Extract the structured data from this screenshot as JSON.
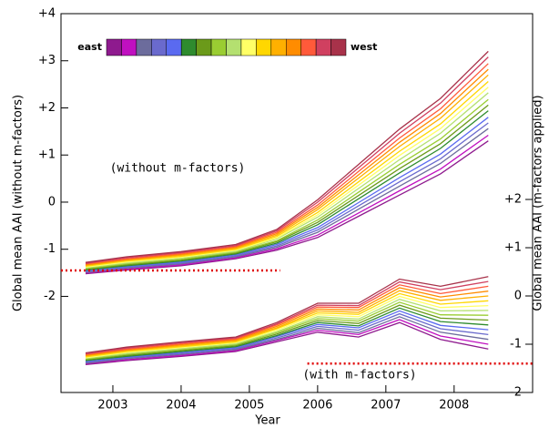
{
  "chart_data": {
    "type": "line",
    "x_label": "Year",
    "y_label": "Global mean AAI (without m-factors)",
    "y2_label": "Global mean AAI (m-factors applied)",
    "legend_labels": [
      "east",
      "west"
    ],
    "annotations": [
      "(without m-factors)",
      "(with m-factors)"
    ],
    "xlim": [
      2002.24,
      2009.15
    ],
    "xticks": [
      2003,
      2004,
      2005,
      2006,
      2007,
      2008
    ],
    "ylim": [
      -4.04,
      4
    ],
    "yticks": [
      {
        "value": 4,
        "label": "+4"
      },
      {
        "value": 3,
        "label": "+3"
      },
      {
        "value": 2,
        "label": "+2"
      },
      {
        "value": 1,
        "label": "+1"
      },
      0,
      -1,
      -2
    ],
    "y2lim": [
      -2,
      5.85
    ],
    "y2ticks": [
      {
        "value": 2,
        "label": "+2"
      },
      {
        "value": 1,
        "label": "+1"
      },
      0,
      -1,
      -2
    ],
    "reference_lines": [
      {
        "axis": "y",
        "value": -1.45,
        "x": [
          2002.24,
          2005.45
        ],
        "color": "#e00000"
      },
      {
        "axis": "y2",
        "value": -1.4,
        "x": [
          2005.85,
          2009.15
        ],
        "color": "#e00000"
      }
    ],
    "x": [
      2002.6,
      2003.2,
      2004.0,
      2004.8,
      2005.4,
      2006.0,
      2006.6,
      2007.2,
      2007.8,
      2008.5
    ],
    "series": [
      {
        "color": "#8e1a8e",
        "values": [
          -1.52,
          -1.44,
          -1.35,
          -1.2,
          -1.02,
          -0.75,
          -0.3,
          0.15,
          0.6,
          1.3
        ]
      },
      {
        "color": "#c010c0",
        "values": [
          -1.5,
          -1.42,
          -1.33,
          -1.18,
          -0.99,
          -0.7,
          -0.23,
          0.24,
          0.7,
          1.42
        ]
      },
      {
        "color": "#6c6c9c",
        "values": [
          -1.49,
          -1.4,
          -1.31,
          -1.16,
          -0.96,
          -0.64,
          -0.15,
          0.34,
          0.82,
          1.56
        ]
      },
      {
        "color": "#6a6acd",
        "values": [
          -1.47,
          -1.38,
          -1.29,
          -1.14,
          -0.93,
          -0.59,
          -0.08,
          0.43,
          0.92,
          1.68
        ]
      },
      {
        "color": "#5a6af0",
        "values": [
          -1.46,
          -1.37,
          -1.27,
          -1.12,
          -0.9,
          -0.54,
          -0.01,
          0.52,
          1.02,
          1.8
        ]
      },
      {
        "color": "#2e8b2e",
        "values": [
          -1.44,
          -1.35,
          -1.25,
          -1.1,
          -0.87,
          -0.48,
          0.07,
          0.62,
          1.14,
          1.94
        ]
      },
      {
        "color": "#6b9a1a",
        "values": [
          -1.42,
          -1.33,
          -1.23,
          -1.08,
          -0.84,
          -0.43,
          0.14,
          0.71,
          1.24,
          2.06
        ]
      },
      {
        "color": "#9acd32",
        "values": [
          -1.41,
          -1.31,
          -1.21,
          -1.06,
          -0.82,
          -0.38,
          0.21,
          0.8,
          1.34,
          2.18
        ]
      },
      {
        "color": "#b4e070",
        "values": [
          -1.39,
          -1.29,
          -1.19,
          -1.04,
          -0.78,
          -0.32,
          0.29,
          0.9,
          1.46,
          2.32
        ]
      },
      {
        "color": "#ffff66",
        "values": [
          -1.38,
          -1.27,
          -1.17,
          -1.02,
          -0.76,
          -0.27,
          0.36,
          0.99,
          1.56,
          2.44
        ]
      },
      {
        "color": "#ffd700",
        "values": [
          -1.36,
          -1.25,
          -1.15,
          -1.0,
          -0.73,
          -0.22,
          0.43,
          1.08,
          1.66,
          2.56
        ]
      },
      {
        "color": "#ffb000",
        "values": [
          -1.34,
          -1.23,
          -1.13,
          -0.98,
          -0.7,
          -0.16,
          0.51,
          1.18,
          1.78,
          2.7
        ]
      },
      {
        "color": "#ff8c00",
        "values": [
          -1.33,
          -1.22,
          -1.11,
          -0.96,
          -0.67,
          -0.11,
          0.58,
          1.27,
          1.88,
          2.82
        ]
      },
      {
        "color": "#ff5a3a",
        "values": [
          -1.31,
          -1.2,
          -1.09,
          -0.94,
          -0.64,
          -0.06,
          0.65,
          1.36,
          1.98,
          2.94
        ]
      },
      {
        "color": "#d04060",
        "values": [
          -1.3,
          -1.18,
          -1.07,
          -0.92,
          -0.61,
          0.0,
          0.73,
          1.46,
          2.1,
          3.08
        ]
      },
      {
        "color": "#a8324a",
        "values": [
          -1.28,
          -1.16,
          -1.05,
          -0.9,
          -0.58,
          0.05,
          0.8,
          1.55,
          2.2,
          3.2
        ]
      },
      {
        "color": "#8e1a8e",
        "axis": "y2",
        "values": [
          -1.42,
          -1.34,
          -1.25,
          -1.15,
          -0.95,
          -0.75,
          -0.85,
          -0.55,
          -0.9,
          -1.1
        ]
      },
      {
        "color": "#c010c0",
        "axis": "y2",
        "values": [
          -1.4,
          -1.32,
          -1.23,
          -1.13,
          -0.92,
          -0.71,
          -0.8,
          -0.49,
          -0.83,
          -1.0
        ]
      },
      {
        "color": "#6c6c9c",
        "axis": "y2",
        "values": [
          -1.39,
          -1.3,
          -1.21,
          -1.11,
          -0.9,
          -0.67,
          -0.76,
          -0.43,
          -0.75,
          -0.9
        ]
      },
      {
        "color": "#6a6acd",
        "axis": "y2",
        "values": [
          -1.37,
          -1.28,
          -1.19,
          -1.09,
          -0.87,
          -0.63,
          -0.71,
          -0.37,
          -0.68,
          -0.8
        ]
      },
      {
        "color": "#5a6af0",
        "axis": "y2",
        "values": [
          -1.36,
          -1.27,
          -1.17,
          -1.07,
          -0.84,
          -0.59,
          -0.66,
          -0.31,
          -0.61,
          -0.7
        ]
      },
      {
        "color": "#2e8b2e",
        "axis": "y2",
        "values": [
          -1.34,
          -1.25,
          -1.15,
          -1.05,
          -0.82,
          -0.55,
          -0.62,
          -0.25,
          -0.53,
          -0.6
        ]
      },
      {
        "color": "#6b9a1a",
        "axis": "y2",
        "values": [
          -1.32,
          -1.23,
          -1.13,
          -1.03,
          -0.79,
          -0.51,
          -0.57,
          -0.19,
          -0.46,
          -0.5
        ]
      },
      {
        "color": "#9acd32",
        "axis": "y2",
        "values": [
          -1.31,
          -1.21,
          -1.11,
          -1.01,
          -0.76,
          -0.47,
          -0.52,
          -0.13,
          -0.39,
          -0.4
        ]
      },
      {
        "color": "#b4e070",
        "axis": "y2",
        "values": [
          -1.29,
          -1.19,
          -1.09,
          -0.99,
          -0.74,
          -0.43,
          -0.48,
          -0.07,
          -0.31,
          -0.3
        ]
      },
      {
        "color": "#ffff66",
        "axis": "y2",
        "values": [
          -1.28,
          -1.17,
          -1.07,
          -0.97,
          -0.71,
          -0.39,
          -0.43,
          -0.01,
          -0.24,
          -0.2
        ]
      },
      {
        "color": "#ffd700",
        "axis": "y2",
        "values": [
          -1.26,
          -1.15,
          -1.05,
          -0.95,
          -0.68,
          -0.35,
          -0.38,
          0.05,
          -0.17,
          -0.1
        ]
      },
      {
        "color": "#ffb000",
        "axis": "y2",
        "values": [
          -1.24,
          -1.13,
          -1.03,
          -0.93,
          -0.66,
          -0.31,
          -0.34,
          0.11,
          -0.09,
          0.0
        ]
      },
      {
        "color": "#ff8c00",
        "axis": "y2",
        "values": [
          -1.23,
          -1.12,
          -1.01,
          -0.91,
          -0.63,
          -0.27,
          -0.29,
          0.17,
          -0.02,
          0.1
        ]
      },
      {
        "color": "#ff5a3a",
        "axis": "y2",
        "values": [
          -1.21,
          -1.1,
          -0.99,
          -0.89,
          -0.6,
          -0.23,
          -0.24,
          0.23,
          0.05,
          0.2
        ]
      },
      {
        "color": "#d04060",
        "axis": "y2",
        "values": [
          -1.2,
          -1.08,
          -0.97,
          -0.87,
          -0.58,
          -0.19,
          -0.2,
          0.29,
          0.13,
          0.3
        ]
      },
      {
        "color": "#a8324a",
        "axis": "y2",
        "values": [
          -1.18,
          -1.06,
          -0.95,
          -0.85,
          -0.55,
          -0.15,
          -0.15,
          0.35,
          0.2,
          0.4
        ]
      }
    ]
  }
}
